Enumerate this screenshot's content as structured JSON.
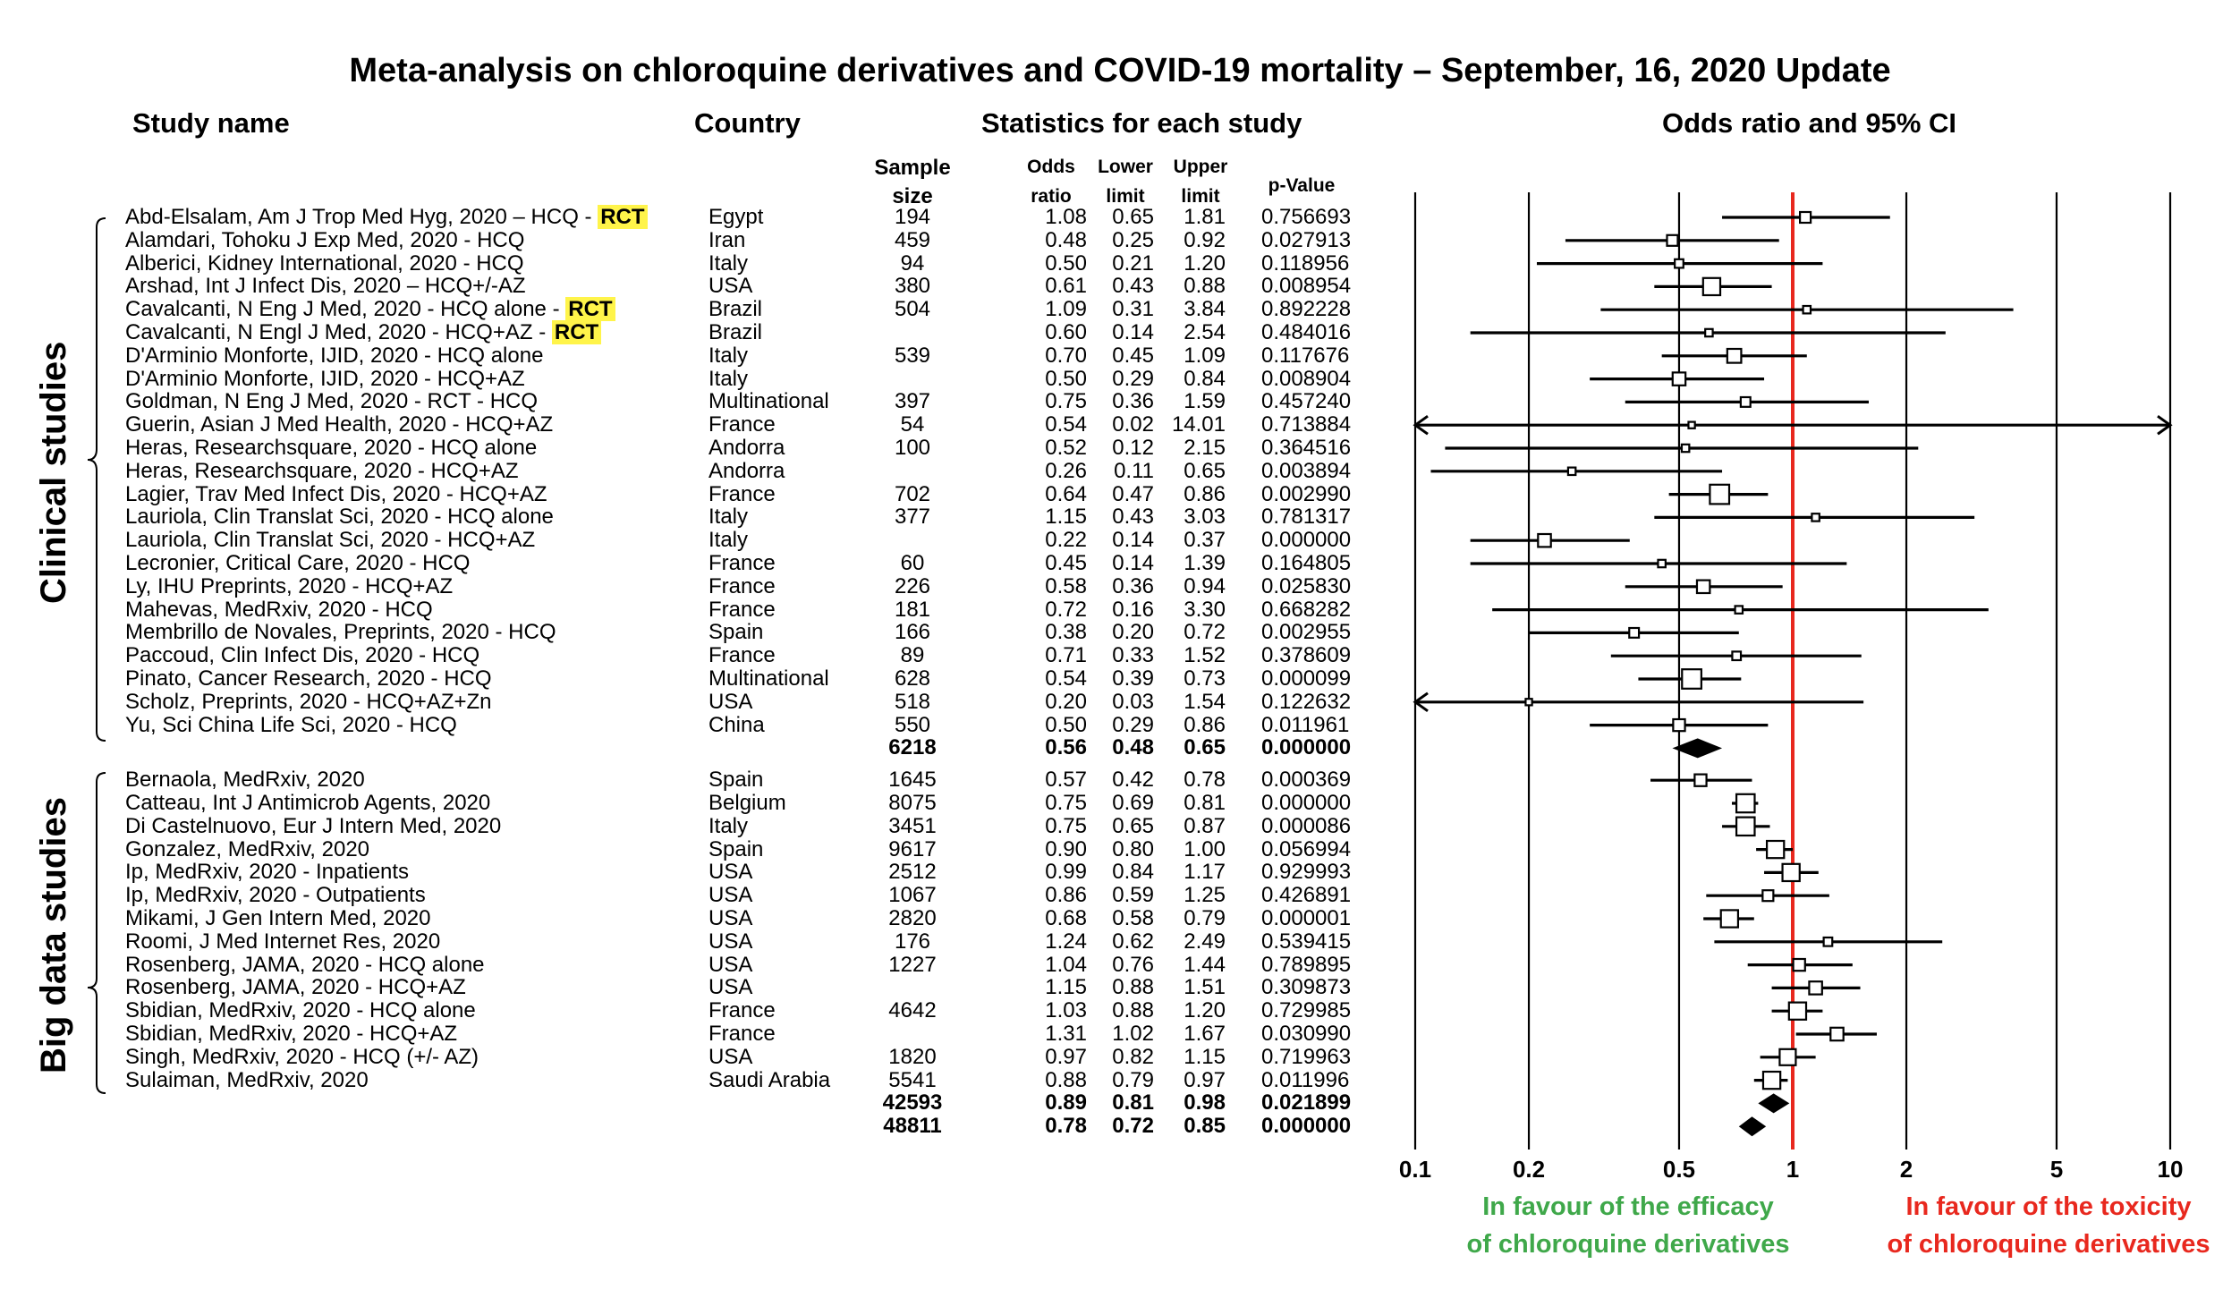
{
  "title": "Meta-analysis on chloroquine derivatives and COVID-19 mortality – September, 16, 2020 Update",
  "headers": {
    "study_name": "Study name",
    "country": "Country",
    "statistics": "Statistics for each study",
    "odds_ci": "Odds ratio and 95% CI",
    "sample_1": "Sample",
    "sample_2": "size",
    "odds_1": "Odds",
    "odds_2": "ratio",
    "lower_1": "Lower",
    "lower_2": "limit",
    "upper_1": "Upper",
    "upper_2": "limit",
    "pvalue": "p-Value"
  },
  "groups": {
    "clinical": "Clinical studies",
    "bigdata": "Big data studies"
  },
  "favour": {
    "left_1": "In favour of the efficacy",
    "left_2": "of chloroquine derivatives",
    "right_1": "In favour of the toxicity",
    "right_2": "of chloroquine derivatives",
    "left_color": "#3fa84a",
    "right_color": "#e8281e"
  },
  "chart_data": {
    "type": "forest",
    "xscale": "log",
    "xlim": [
      0.1,
      10
    ],
    "xticks": [
      "0.1",
      "0.2",
      "0.5",
      "1",
      "2",
      "5",
      "10"
    ],
    "reference_line": 1,
    "reference_color": "#e8281e",
    "rows": [
      {
        "name": "Abd-Elsalam, Am J Trop Med Hyg, 2020 – HCQ - ",
        "tag": "RCT",
        "country": "Egypt",
        "n": "194",
        "or": "1.08",
        "lo": "0.65",
        "hi": "1.81",
        "p": "0.756693",
        "w": 1
      },
      {
        "name": "Alamdari, Tohoku J Exp Med, 2020 - HCQ",
        "country": "Iran",
        "n": "459",
        "or": "0.48",
        "lo": "0.25",
        "hi": "0.92",
        "p": "0.027913",
        "w": 1
      },
      {
        "name": "Alberici, Kidney International, 2020 - HCQ",
        "country": "Italy",
        "n": "94",
        "or": "0.50",
        "lo": "0.21",
        "hi": "1.20",
        "p": "0.118956",
        "w": 0.8
      },
      {
        "name": "Arshad, Int J Infect Dis, 2020 – HCQ+/-AZ",
        "country": "USA",
        "n": "380",
        "or": "0.61",
        "lo": "0.43",
        "hi": "0.88",
        "p": "0.008954",
        "w": 1.6
      },
      {
        "name": "Cavalcanti, N Eng J Med, 2020 - HCQ alone - ",
        "tag": "RCT",
        "country": "Brazil",
        "n": "504",
        "or": "1.09",
        "lo": "0.31",
        "hi": "3.84",
        "p": "0.892228",
        "w": 0.7
      },
      {
        "name": "Cavalcanti, N Engl J Med, 2020 - HCQ+AZ - ",
        "tag": "RCT",
        "country": "Brazil",
        "n": "",
        "or": "0.60",
        "lo": "0.14",
        "hi": "2.54",
        "p": "0.484016",
        "w": 0.7
      },
      {
        "name": "D'Arminio Monforte, IJID, 2020 - HCQ alone",
        "country": "Italy",
        "n": "539",
        "or": "0.70",
        "lo": "0.45",
        "hi": "1.09",
        "p": "0.117676",
        "w": 1.3
      },
      {
        "name": "D'Arminio Monforte, IJID, 2020 - HCQ+AZ",
        "country": "Italy",
        "n": "",
        "or": "0.50",
        "lo": "0.29",
        "hi": "0.84",
        "p": "0.008904",
        "w": 1.2
      },
      {
        "name": "Goldman, N Eng J Med, 2020 - RCT - HCQ",
        "country": "Multinational",
        "n": "397",
        "or": "0.75",
        "lo": "0.36",
        "hi": "1.59",
        "p": "0.457240",
        "w": 0.9
      },
      {
        "name": "Guerin, Asian J Med Health, 2020 - HCQ+AZ",
        "country": "France",
        "n": "54",
        "or": "0.54",
        "lo": "0.02",
        "hi": "14.01",
        "p": "0.713884",
        "w": 0.6
      },
      {
        "name": "Heras, Researchsquare, 2020 - HCQ alone",
        "country": "Andorra",
        "n": "100",
        "or": "0.52",
        "lo": "0.12",
        "hi": "2.15",
        "p": "0.364516",
        "w": 0.7
      },
      {
        "name": "Heras, Researchsquare, 2020 - HCQ+AZ",
        "country": "Andorra",
        "n": "",
        "or": "0.26",
        "lo": "0.11",
        "hi": "0.65",
        "p": "0.003894",
        "w": 0.7
      },
      {
        "name": "Lagier, Trav Med Infect Dis, 2020 - HCQ+AZ",
        "country": "France",
        "n": "702",
        "or": "0.64",
        "lo": "0.47",
        "hi": "0.86",
        "p": "0.002990",
        "w": 1.8
      },
      {
        "name": "Lauriola, Clin Translat Sci, 2020 - HCQ alone",
        "country": "Italy",
        "n": "377",
        "or": "1.15",
        "lo": "0.43",
        "hi": "3.03",
        "p": "0.781317",
        "w": 0.7
      },
      {
        "name": "Lauriola, Clin Translat Sci, 2020 - HCQ+AZ",
        "country": "Italy",
        "n": "",
        "or": "0.22",
        "lo": "0.14",
        "hi": "0.37",
        "p": "0.000000",
        "w": 1.2
      },
      {
        "name": "Lecronier, Critical Care, 2020 - HCQ",
        "country": "France",
        "n": "60",
        "or": "0.45",
        "lo": "0.14",
        "hi": "1.39",
        "p": "0.164805",
        "w": 0.7
      },
      {
        "name": "Ly, IHU Preprints, 2020 - HCQ+AZ",
        "country": "France",
        "n": "226",
        "or": "0.58",
        "lo": "0.36",
        "hi": "0.94",
        "p": "0.025830",
        "w": 1.2
      },
      {
        "name": "Mahevas, MedRxiv, 2020 - HCQ",
        "country": "France",
        "n": "181",
        "or": "0.72",
        "lo": "0.16",
        "hi": "3.30",
        "p": "0.668282",
        "w": 0.7
      },
      {
        "name": "Membrillo de Novales, Preprints, 2020 - HCQ",
        "country": "Spain",
        "n": "166",
        "or": "0.38",
        "lo": "0.20",
        "hi": "0.72",
        "p": "0.002955",
        "w": 0.9
      },
      {
        "name": "Paccoud, Clin Infect Dis, 2020 - HCQ",
        "country": "France",
        "n": "89",
        "or": "0.71",
        "lo": "0.33",
        "hi": "1.52",
        "p": "0.378609",
        "w": 0.8
      },
      {
        "name": "Pinato, Cancer Research, 2020 - HCQ",
        "country": "Multinational",
        "n": "628",
        "or": "0.54",
        "lo": "0.39",
        "hi": "0.73",
        "p": "0.000099",
        "w": 1.8
      },
      {
        "name": "Scholz, Preprints, 2020 - HCQ+AZ+Zn",
        "country": "USA",
        "n": "518",
        "or": "0.20",
        "lo": "0.03",
        "hi": "1.54",
        "p": "0.122632",
        "w": 0.6
      },
      {
        "name": "Yu, Sci China Life Sci, 2020 - HCQ",
        "country": "China",
        "n": "550",
        "or": "0.50",
        "lo": "0.29",
        "hi": "0.86",
        "p": "0.011961",
        "w": 1.1
      },
      {
        "name": "",
        "country": "",
        "n": "6218",
        "or": "0.56",
        "lo": "0.48",
        "hi": "0.65",
        "p": "0.000000",
        "summary": true
      },
      {
        "name": "Bernaola, MedRxiv, 2020",
        "country": "Spain",
        "n": "1645",
        "or": "0.57",
        "lo": "0.42",
        "hi": "0.78",
        "p": "0.000369",
        "w": 1.1
      },
      {
        "name": "Catteau, Int J Antimicrob Agents, 2020",
        "country": "Belgium",
        "n": "8075",
        "or": "0.75",
        "lo": "0.69",
        "hi": "0.81",
        "p": "0.000000",
        "w": 1.7
      },
      {
        "name": "Di Castelnuovo, Eur J Intern Med, 2020",
        "country": "Italy",
        "n": "3451",
        "or": "0.75",
        "lo": "0.65",
        "hi": "0.87",
        "p": "0.000086",
        "w": 1.7
      },
      {
        "name": "Gonzalez, MedRxiv, 2020",
        "country": "Spain",
        "n": "9617",
        "or": "0.90",
        "lo": "0.80",
        "hi": "1.00",
        "p": "0.056994",
        "w": 1.6
      },
      {
        "name": "Ip, MedRxiv, 2020 - Inpatients",
        "country": "USA",
        "n": "2512",
        "or": "0.99",
        "lo": "0.84",
        "hi": "1.17",
        "p": "0.929993",
        "w": 1.6
      },
      {
        "name": "Ip, MedRxiv, 2020 - Outpatients",
        "country": "USA",
        "n": "1067",
        "or": "0.86",
        "lo": "0.59",
        "hi": "1.25",
        "p": "0.426891",
        "w": 1.0
      },
      {
        "name": "Mikami, J Gen Intern Med, 2020",
        "country": "USA",
        "n": "2820",
        "or": "0.68",
        "lo": "0.58",
        "hi": "0.79",
        "p": "0.000001",
        "w": 1.6
      },
      {
        "name": "Roomi, J Med Internet Res, 2020",
        "country": "USA",
        "n": "176",
        "or": "1.24",
        "lo": "0.62",
        "hi": "2.49",
        "p": "0.539415",
        "w": 0.8
      },
      {
        "name": "Rosenberg, JAMA, 2020 - HCQ alone",
        "country": "USA",
        "n": "1227",
        "or": "1.04",
        "lo": "0.76",
        "hi": "1.44",
        "p": "0.789895",
        "w": 1.1
      },
      {
        "name": "Rosenberg, JAMA, 2020 - HCQ+AZ",
        "country": "USA",
        "n": "",
        "or": "1.15",
        "lo": "0.88",
        "hi": "1.51",
        "p": "0.309873",
        "w": 1.2
      },
      {
        "name": "Sbidian, MedRxiv, 2020 - HCQ alone",
        "country": "France",
        "n": "4642",
        "or": "1.03",
        "lo": "0.88",
        "hi": "1.20",
        "p": "0.729985",
        "w": 1.6
      },
      {
        "name": "Sbidian, MedRxiv, 2020 - HCQ+AZ",
        "country": "France",
        "n": "",
        "or": "1.31",
        "lo": "1.02",
        "hi": "1.67",
        "p": "0.030990",
        "w": 1.2
      },
      {
        "name": "Singh, MedRxiv, 2020 - HCQ (+/- AZ)",
        "country": "USA",
        "n": "1820",
        "or": "0.97",
        "lo": "0.82",
        "hi": "1.15",
        "p": "0.719963",
        "w": 1.5
      },
      {
        "name": "Sulaiman, MedRxiv, 2020",
        "country": "Saudi Arabia",
        "n": "5541",
        "or": "0.88",
        "lo": "0.79",
        "hi": "0.97",
        "p": "0.011996",
        "w": 1.6
      },
      {
        "name": "",
        "country": "",
        "n": "42593",
        "or": "0.89",
        "lo": "0.81",
        "hi": "0.98",
        "p": "0.021899",
        "summary": true
      },
      {
        "name": "",
        "country": "",
        "n": "48811",
        "or": "0.78",
        "lo": "0.72",
        "hi": "0.85",
        "p": "0.000000",
        "summary": true
      }
    ]
  }
}
